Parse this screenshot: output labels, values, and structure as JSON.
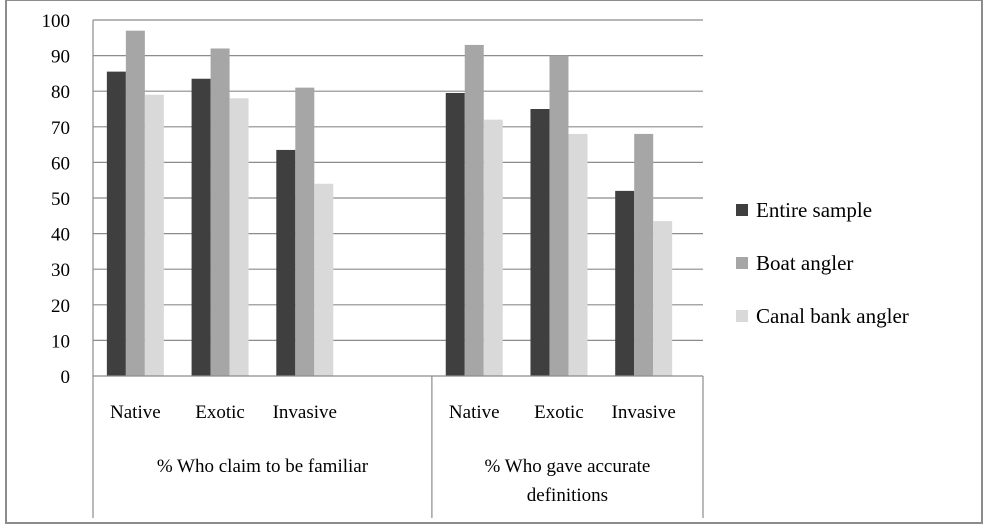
{
  "chart_data": {
    "type": "bar",
    "title": "",
    "xlabel": "",
    "ylabel": "",
    "ylim": [
      0,
      100
    ],
    "yticks": [
      0,
      10,
      20,
      30,
      40,
      50,
      60,
      70,
      80,
      90,
      100
    ],
    "grid": true,
    "legend_position": "right",
    "groups": [
      {
        "label": "% Who claim to be familiar",
        "lines": [
          "% Who claim to be familiar"
        ]
      },
      {
        "label": "% Who gave accurate definitions",
        "lines": [
          "% Who gave accurate",
          "definitions"
        ]
      }
    ],
    "categories": [
      "Native",
      "Exotic",
      "Invasive",
      "Native",
      "Exotic",
      "Invasive"
    ],
    "series": [
      {
        "name": "Entire sample",
        "color": "#3f3f3f",
        "values": [
          85.5,
          83.5,
          63.5,
          79.5,
          75,
          52
        ]
      },
      {
        "name": "Boat angler",
        "color": "#a6a6a6",
        "values": [
          97,
          92,
          81,
          93,
          90,
          68
        ]
      },
      {
        "name": "Canal bank angler",
        "color": "#d9d9d9",
        "values": [
          79,
          78,
          54,
          72,
          68,
          43.5
        ]
      }
    ]
  }
}
